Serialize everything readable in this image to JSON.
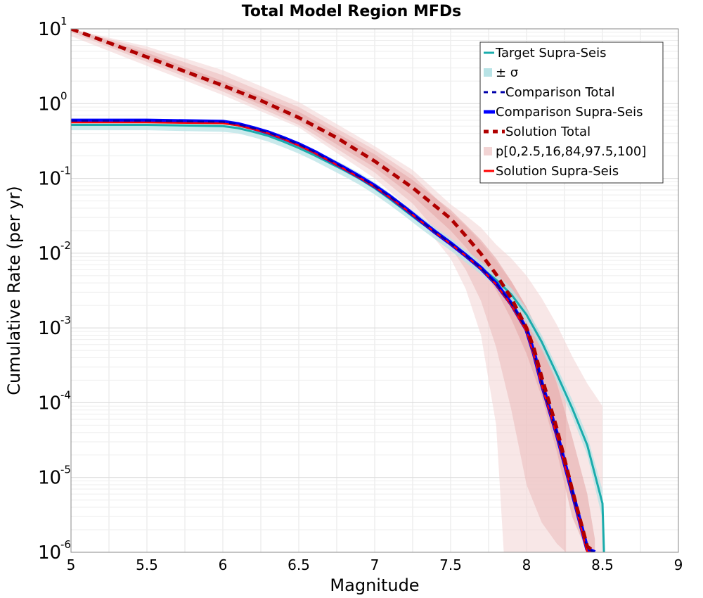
{
  "chart_data": {
    "type": "line",
    "title": "Total Model Region MFDs",
    "xlabel": "Magnitude",
    "ylabel": "Cumulative Rate (per yr)",
    "xlim": [
      5,
      9
    ],
    "ylim": [
      1e-06,
      10
    ],
    "yscale": "log",
    "grid": true,
    "legend_position": "top-right",
    "x_ticks": [
      "5",
      "5.5",
      "6",
      "6.5",
      "7",
      "7.5",
      "8",
      "8.5",
      "9"
    ],
    "y_ticks": [
      {
        "base": "10",
        "exp": "-6"
      },
      {
        "base": "10",
        "exp": "-5"
      },
      {
        "base": "10",
        "exp": "-4"
      },
      {
        "base": "10",
        "exp": "-3"
      },
      {
        "base": "10",
        "exp": "-2"
      },
      {
        "base": "10",
        "exp": "-1"
      },
      {
        "base": "10",
        "exp": "0"
      },
      {
        "base": "10",
        "exp": "1"
      }
    ],
    "legend": [
      {
        "label": "Target Supra-Seis",
        "style": "line",
        "color": "#1aacac"
      },
      {
        "label": "± σ",
        "style": "band",
        "color": "#b8e3e6"
      },
      {
        "label": "Comparison Total",
        "style": "dashed",
        "color": "#0000aa"
      },
      {
        "label": "Comparison Supra-Seis",
        "style": "thick",
        "color": "#0000ff"
      },
      {
        "label": "Solution Total",
        "style": "dashed-thick",
        "color": "#b00000"
      },
      {
        "label": "p[0,2.5,16,84,97.5,100]",
        "style": "band",
        "color": "#f2d4d4"
      },
      {
        "label": "Solution Supra-Seis",
        "style": "line",
        "color": "#ff0000"
      }
    ],
    "series": [
      {
        "name": "Target Supra-Seis",
        "color": "#1aacac",
        "x": [
          5,
          5.5,
          6,
          6.1,
          6.2,
          6.3,
          6.4,
          6.5,
          6.6,
          6.7,
          6.8,
          6.9,
          7,
          7.1,
          7.2,
          7.3,
          7.4,
          7.5,
          7.6,
          7.7,
          7.8,
          7.9,
          8,
          8.1,
          8.2,
          8.3,
          8.4,
          8.5,
          8.51
        ],
        "y": [
          0.52,
          0.52,
          0.5,
          0.47,
          0.42,
          0.37,
          0.31,
          0.255,
          0.205,
          0.162,
          0.128,
          0.099,
          0.074,
          0.053,
          0.037,
          0.026,
          0.0185,
          0.0132,
          0.0092,
          0.0064,
          0.0044,
          0.0028,
          0.0015,
          0.00065,
          0.00024,
          8.5e-05,
          2.7e-05,
          4.5e-06,
          1e-06
        ]
      },
      {
        "name": "Comparison Total",
        "color": "#0000aa",
        "x": [
          5,
          5.5,
          6,
          6.1,
          6.2,
          6.3,
          6.4,
          6.5,
          6.6,
          6.7,
          6.8,
          6.9,
          7,
          7.1,
          7.2,
          7.3,
          7.4,
          7.5,
          7.6,
          7.7,
          7.8,
          7.9,
          8,
          8.05,
          8.1,
          8.2,
          8.3,
          8.4,
          8.45
        ],
        "y": [
          0.59,
          0.59,
          0.57,
          0.53,
          0.47,
          0.41,
          0.345,
          0.285,
          0.228,
          0.177,
          0.137,
          0.105,
          0.079,
          0.057,
          0.04,
          0.0275,
          0.019,
          0.0135,
          0.0093,
          0.0063,
          0.0039,
          0.0021,
          0.00095,
          0.00045,
          0.00018,
          3.8e-05,
          6.5e-06,
          1.1e-06,
          1e-06
        ]
      },
      {
        "name": "Comparison Supra-Seis",
        "color": "#0000ff",
        "x": [
          5,
          5.5,
          6,
          6.1,
          6.2,
          6.3,
          6.4,
          6.5,
          6.6,
          6.7,
          6.8,
          6.9,
          7,
          7.1,
          7.2,
          7.3,
          7.4,
          7.5,
          7.6,
          7.7,
          7.8,
          7.9,
          8,
          8.05,
          8.1,
          8.2,
          8.3,
          8.4,
          8.45
        ],
        "y": [
          0.59,
          0.59,
          0.57,
          0.53,
          0.47,
          0.41,
          0.345,
          0.285,
          0.228,
          0.177,
          0.137,
          0.105,
          0.079,
          0.057,
          0.04,
          0.0275,
          0.019,
          0.0135,
          0.0093,
          0.0063,
          0.0039,
          0.0021,
          0.00095,
          0.00045,
          0.00018,
          3.8e-05,
          6.5e-06,
          1.1e-06,
          1e-06
        ]
      },
      {
        "name": "Solution Total",
        "color": "#b00000",
        "x": [
          5,
          5.25,
          5.5,
          5.75,
          6,
          6.25,
          6.5,
          6.75,
          7,
          7.25,
          7.5,
          7.6,
          7.7,
          7.8,
          7.9,
          8,
          8.05,
          8.1,
          8.2,
          8.3,
          8.4,
          8.45
        ],
        "y": [
          10,
          6.5,
          4.2,
          2.7,
          1.75,
          1.1,
          0.65,
          0.35,
          0.17,
          0.075,
          0.029,
          0.017,
          0.0098,
          0.0052,
          0.0025,
          0.001,
          0.00052,
          0.00022,
          4.5e-05,
          7e-06,
          1.2e-06,
          1e-06
        ]
      },
      {
        "name": "Solution Supra-Seis",
        "color": "#ff0000",
        "x": [
          5,
          5.5,
          6,
          6.1,
          6.2,
          6.3,
          6.4,
          6.5,
          6.6,
          6.7,
          6.8,
          6.9,
          7,
          7.1,
          7.2,
          7.3,
          7.4,
          7.5,
          7.6,
          7.7,
          7.8,
          7.9,
          8,
          8.05,
          8.1,
          8.2,
          8.3,
          8.4,
          8.45
        ],
        "y": [
          0.56,
          0.56,
          0.545,
          0.51,
          0.455,
          0.4,
          0.335,
          0.275,
          0.22,
          0.172,
          0.133,
          0.102,
          0.077,
          0.0555,
          0.039,
          0.027,
          0.0188,
          0.0133,
          0.0092,
          0.0062,
          0.0038,
          0.002,
          0.0009,
          0.00042,
          0.00017,
          3.6e-05,
          6.2e-06,
          1e-06,
          1e-06
        ]
      }
    ],
    "bands": [
      {
        "name": "p 0-100 outer",
        "color": "#f2d4d4",
        "x": [
          5,
          5.5,
          6,
          6.5,
          7,
          7.25,
          7.5,
          7.6,
          7.7,
          7.8,
          7.85,
          7.9,
          8,
          8.1,
          8.2,
          8.3,
          8.4,
          8.5
        ],
        "lower": [
          8.0,
          3.2,
          1.3,
          0.48,
          0.1,
          0.036,
          0.0085,
          0.0033,
          0.0008,
          5e-05,
          1e-06,
          1e-06,
          1e-06,
          1e-06,
          1e-06,
          1e-06,
          1e-06,
          1e-06
        ],
        "upper": [
          10,
          5.8,
          2.8,
          1.05,
          0.27,
          0.13,
          0.045,
          0.032,
          0.022,
          0.013,
          0.0105,
          0.0085,
          0.005,
          0.0025,
          0.0011,
          0.00042,
          0.00018,
          9e-05
        ]
      },
      {
        "name": "p 2.5-97.5",
        "color": "#ebbcbc",
        "x": [
          5,
          5.5,
          6,
          6.5,
          7,
          7.25,
          7.5,
          7.6,
          7.7,
          7.8,
          7.9,
          8,
          8.1,
          8.2,
          8.26
        ],
        "lower": [
          9.0,
          3.6,
          1.45,
          0.52,
          0.12,
          0.046,
          0.012,
          0.006,
          0.0023,
          0.00055,
          8e-05,
          8e-06,
          2.5e-06,
          1.3e-06,
          1e-06
        ],
        "upper": [
          10,
          5.3,
          2.4,
          0.9,
          0.24,
          0.11,
          0.035,
          0.023,
          0.014,
          0.0078,
          0.0042,
          0.0019,
          0.00075,
          0.00024,
          0.0001
        ]
      },
      {
        "name": "p 16-84",
        "color": "#e3a6a6",
        "x": [
          5,
          5.5,
          6,
          6.5,
          7,
          7.25,
          7.5,
          7.6,
          7.7,
          7.8,
          7.9,
          8,
          8.1,
          8.2,
          8.3,
          8.4,
          8.45
        ],
        "lower": [
          9.6,
          3.9,
          1.6,
          0.58,
          0.14,
          0.058,
          0.02,
          0.012,
          0.0065,
          0.0032,
          0.0013,
          0.00045,
          0.00012,
          2.2e-05,
          3e-06,
          1e-06,
          1e-06
        ],
        "upper": [
          10,
          4.8,
          2.0,
          0.78,
          0.21,
          0.095,
          0.038,
          0.024,
          0.015,
          0.0085,
          0.0042,
          0.0019,
          0.0007,
          0.00018,
          3.5e-05,
          6e-06,
          1.5e-06
        ]
      },
      {
        "name": "± σ",
        "color": "#b8e3e6",
        "x": [
          5,
          5.5,
          6,
          6.1,
          6.2,
          6.3,
          6.4,
          6.5,
          6.6,
          6.7,
          6.8,
          6.9,
          7,
          7.1,
          7.2,
          7.3,
          7.4,
          7.5,
          7.6,
          7.7,
          7.8,
          7.9,
          8,
          8.1,
          8.2,
          8.3,
          8.4,
          8.5
        ],
        "lower": [
          0.44,
          0.44,
          0.42,
          0.4,
          0.355,
          0.31,
          0.26,
          0.215,
          0.172,
          0.135,
          0.106,
          0.082,
          0.061,
          0.044,
          0.031,
          0.0215,
          0.0152,
          0.0108,
          0.0075,
          0.0052,
          0.0036,
          0.0022,
          0.0012,
          0.00052,
          0.00019,
          6.6e-05,
          2e-05,
          2.8e-06
        ],
        "upper": [
          0.61,
          0.61,
          0.59,
          0.555,
          0.495,
          0.435,
          0.37,
          0.305,
          0.245,
          0.193,
          0.152,
          0.118,
          0.088,
          0.063,
          0.044,
          0.031,
          0.022,
          0.0158,
          0.011,
          0.0077,
          0.0053,
          0.0034,
          0.0018,
          0.0008,
          0.0003,
          0.00011,
          3.6e-05,
          6.8e-06
        ]
      }
    ]
  }
}
